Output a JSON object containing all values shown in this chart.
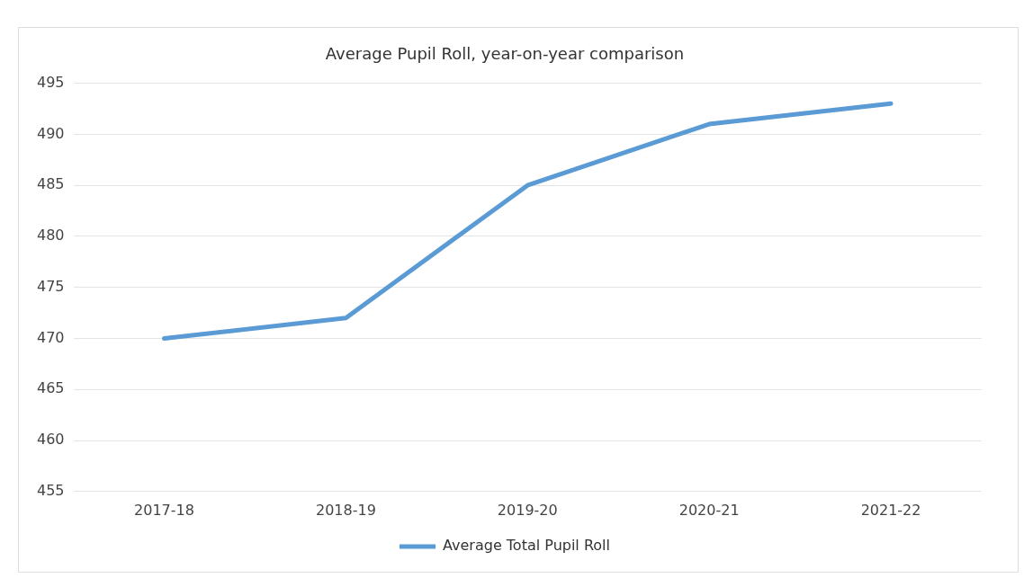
{
  "chart_data": {
    "type": "line",
    "title": "Average Pupil Roll, year-on-year comparison",
    "categories": [
      "2017-18",
      "2018-19",
      "2019-20",
      "2020-21",
      "2021-22"
    ],
    "series": [
      {
        "name": "Average Total Pupil Roll",
        "color": "#5b9bd5",
        "values": [
          470,
          472,
          485,
          491,
          493
        ]
      }
    ],
    "ylim": [
      455,
      495
    ],
    "yticks": [
      455,
      460,
      465,
      470,
      475,
      480,
      485,
      490,
      495
    ],
    "grid": "y",
    "legend": "bottom",
    "marker": "none",
    "line_style": "solid"
  }
}
